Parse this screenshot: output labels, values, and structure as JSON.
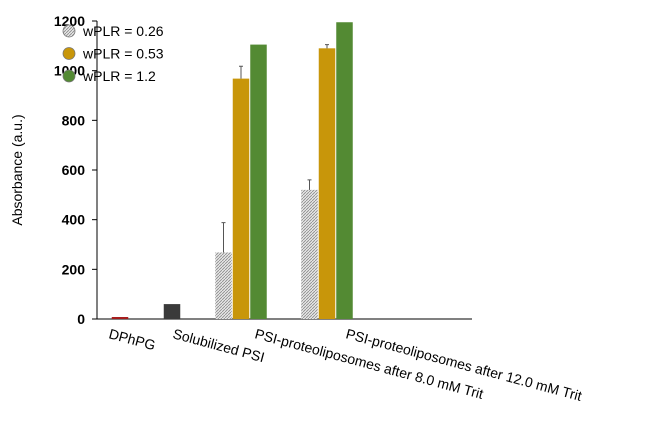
{
  "chart_data": {
    "type": "bar",
    "y_label": "Absorbance (a.u.)",
    "categories": [
      "DPhPG",
      "Solubilized PSI",
      "PSI-proteoliposomes after 8.0 mM Trit",
      "PSI-proteoliposomes after 12.0 mM Trit"
    ],
    "series": [
      {
        "name": "wPLR = 0.26",
        "color": "#c8c8c8",
        "pattern": "hatch",
        "values": [
          8,
          60,
          268,
          520
        ],
        "errors": [
          null,
          null,
          120,
          40
        ],
        "point_colors": [
          "#a61c1c",
          "#3a3a3a",
          "#c8c8c8",
          "#c8c8c8"
        ]
      },
      {
        "name": "wPLR = 0.53",
        "color": "#c8960a",
        "values": [
          null,
          null,
          968,
          1090
        ],
        "errors": [
          null,
          null,
          50,
          15
        ]
      },
      {
        "name": "wPLR = 1.2",
        "color": "#538a33",
        "values": [
          null,
          null,
          1105,
          1195
        ]
      }
    ],
    "ylim": [
      0,
      1200
    ],
    "yticks": [
      0,
      200,
      400,
      600,
      800,
      1000,
      1200
    ],
    "legend": "upper left"
  }
}
